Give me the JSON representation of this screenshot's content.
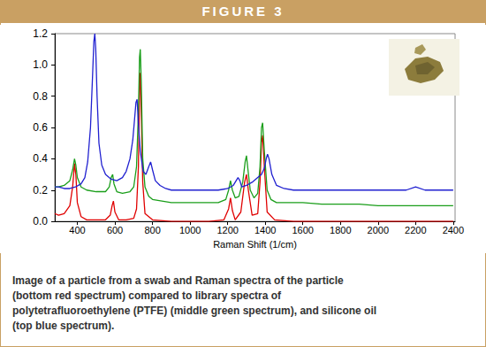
{
  "header": {
    "title": "FIGURE 3"
  },
  "chart_data": {
    "type": "line",
    "xlabel": "Raman Shift (1/cm)",
    "xlim": [
      280,
      2410
    ],
    "xticks": [
      400,
      600,
      800,
      1000,
      1200,
      1400,
      1600,
      1800,
      2000,
      2200,
      2400
    ],
    "ylim": [
      0,
      1.2
    ],
    "yticks": [
      {
        "value": 0,
        "label": "0.0"
      },
      0.2,
      0.4,
      0.6,
      0.8,
      {
        "value": 1,
        "label": "1.0"
      },
      1.2
    ],
    "grid": false,
    "series": [
      {
        "color": "#e00000",
        "x": [
          280,
          300,
          330,
          360,
          375,
          385,
          392,
          400,
          420,
          450,
          500,
          550,
          575,
          585,
          592,
          600,
          620,
          660,
          700,
          715,
          725,
          731,
          735,
          740,
          748,
          760,
          800,
          900,
          1000,
          1100,
          1180,
          1205,
          1215,
          1225,
          1240,
          1270,
          1290,
          1300,
          1310,
          1330,
          1360,
          1372,
          1380,
          1386,
          1395,
          1410,
          1450,
          1550,
          1700,
          1900,
          2100,
          2300,
          2400
        ],
        "values": [
          0.05,
          0.04,
          0.05,
          0.1,
          0.22,
          0.37,
          0.3,
          0.12,
          0.03,
          0.01,
          0.01,
          0.01,
          0.04,
          0.1,
          0.13,
          0.06,
          0.01,
          0.01,
          0.02,
          0.08,
          0.35,
          0.85,
          0.95,
          0.7,
          0.25,
          0.05,
          0.01,
          0,
          0,
          0,
          0.01,
          0.08,
          0.15,
          0.07,
          0.01,
          0.06,
          0.25,
          0.3,
          0.2,
          0.04,
          0.05,
          0.25,
          0.5,
          0.55,
          0.35,
          0.06,
          0.01,
          0,
          0,
          0,
          0,
          0,
          0
        ]
      },
      {
        "color": "#1a9e1a",
        "x": [
          280,
          300,
          330,
          360,
          375,
          385,
          392,
          400,
          420,
          450,
          500,
          550,
          570,
          580,
          588,
          595,
          610,
          640,
          680,
          700,
          715,
          725,
          731,
          735,
          740,
          748,
          760,
          780,
          800,
          850,
          900,
          1000,
          1100,
          1150,
          1190,
          1205,
          1215,
          1225,
          1240,
          1260,
          1280,
          1293,
          1300,
          1308,
          1320,
          1340,
          1360,
          1372,
          1380,
          1386,
          1395,
          1410,
          1430,
          1460,
          1500,
          1600,
          1700,
          1800,
          1900,
          2000,
          2100,
          2200,
          2300,
          2400
        ],
        "values": [
          0.22,
          0.22,
          0.23,
          0.26,
          0.33,
          0.4,
          0.36,
          0.28,
          0.22,
          0.2,
          0.19,
          0.19,
          0.22,
          0.28,
          0.3,
          0.24,
          0.19,
          0.18,
          0.19,
          0.22,
          0.35,
          0.7,
          1.05,
          1.1,
          0.9,
          0.4,
          0.22,
          0.16,
          0.14,
          0.13,
          0.12,
          0.12,
          0.12,
          0.12,
          0.14,
          0.2,
          0.26,
          0.2,
          0.15,
          0.16,
          0.25,
          0.38,
          0.42,
          0.33,
          0.2,
          0.15,
          0.18,
          0.35,
          0.6,
          0.63,
          0.45,
          0.2,
          0.14,
          0.12,
          0.12,
          0.12,
          0.11,
          0.11,
          0.11,
          0.1,
          0.1,
          0.1,
          0.1,
          0.1
        ]
      },
      {
        "color": "#2020d0",
        "x": [
          280,
          300,
          330,
          360,
          390,
          420,
          440,
          455,
          470,
          480,
          488,
          493,
          498,
          505,
          515,
          530,
          550,
          580,
          610,
          640,
          660,
          680,
          695,
          705,
          712,
          718,
          725,
          735,
          750,
          765,
          780,
          790,
          800,
          815,
          840,
          870,
          900,
          950,
          1000,
          1050,
          1100,
          1150,
          1200,
          1230,
          1255,
          1265,
          1275,
          1300,
          1330,
          1360,
          1380,
          1395,
          1405,
          1412,
          1420,
          1435,
          1460,
          1500,
          1550,
          1600,
          1650,
          1700,
          1750,
          1800,
          1850,
          1900,
          1950,
          2000,
          2050,
          2100,
          2150,
          2200,
          2250,
          2300,
          2350,
          2400
        ],
        "values": [
          0.22,
          0.22,
          0.21,
          0.21,
          0.22,
          0.24,
          0.28,
          0.38,
          0.6,
          0.9,
          1.15,
          1.2,
          1.1,
          0.8,
          0.5,
          0.36,
          0.3,
          0.27,
          0.26,
          0.28,
          0.32,
          0.4,
          0.52,
          0.66,
          0.76,
          0.78,
          0.62,
          0.45,
          0.32,
          0.3,
          0.35,
          0.38,
          0.33,
          0.26,
          0.23,
          0.21,
          0.2,
          0.2,
          0.2,
          0.2,
          0.2,
          0.2,
          0.21,
          0.23,
          0.28,
          0.26,
          0.22,
          0.23,
          0.25,
          0.28,
          0.3,
          0.34,
          0.4,
          0.43,
          0.4,
          0.3,
          0.23,
          0.21,
          0.2,
          0.2,
          0.2,
          0.2,
          0.2,
          0.2,
          0.2,
          0.2,
          0.2,
          0.2,
          0.2,
          0.2,
          0.2,
          0.22,
          0.2,
          0.2,
          0.2,
          0.2
        ]
      }
    ]
  },
  "caption": {
    "lines": [
      "Image of a particle from a swab and Raman spectra of the particle",
      "(bottom red spectrum) compared to library spectra of",
      "polytetrafluoroethylene (PTFE) (middle green spectrum), and silicone oil",
      "(top blue spectrum)."
    ]
  }
}
